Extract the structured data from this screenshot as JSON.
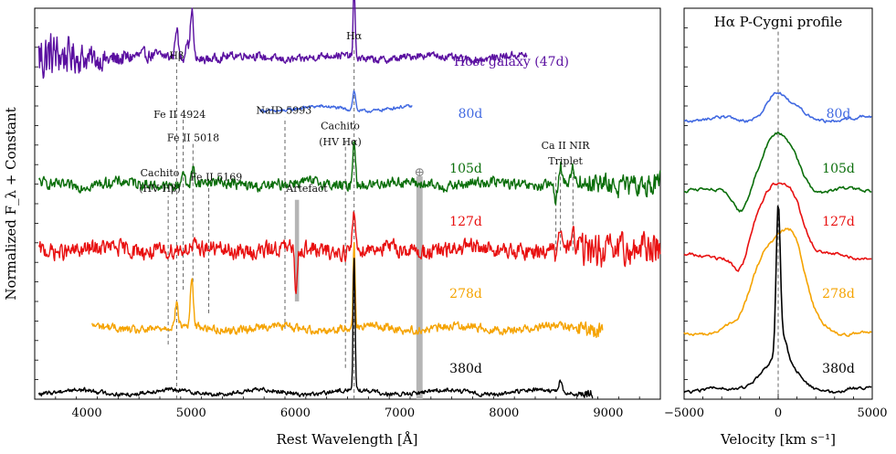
{
  "chart_data": [
    {
      "type": "line",
      "title": "",
      "xlabel": "Rest Wavelength [Å]",
      "ylabel": "Normalized F_λ + Constant",
      "xlim": [
        3500,
        9500
      ],
      "ylim": [
        0,
        100
      ],
      "xticks": [
        4000,
        5000,
        6000,
        7000,
        8000,
        9000
      ],
      "series": [
        {
          "name": "Host galaxy (47d)",
          "label": "Host galaxy (47d)",
          "color": "#5a0fa0",
          "x_range": [
            3540,
            8220
          ],
          "offset": 87.4,
          "amplitude": 1.4,
          "noise_decay": 7.0,
          "lines": [
            [
              4861,
              8.0
            ],
            [
              4959,
              5.0
            ],
            [
              5007,
              13.0
            ],
            [
              6563,
              18.0
            ]
          ]
        },
        {
          "name": "80d",
          "label": "80d",
          "color": "#4169e1",
          "x_range": [
            5660,
            7120
          ],
          "offset": 74.3,
          "amplitude": 0.6,
          "lines": [
            [
              6563,
              5.0
            ]
          ]
        },
        {
          "name": "105d",
          "label": "105d",
          "color": "#0a6e0a",
          "x_range": [
            3540,
            9500
          ],
          "offset": 55.0,
          "amplitude": 2.0,
          "lines": [
            [
              4920,
              4.0
            ],
            [
              5018,
              4.0
            ],
            [
              6563,
              12.0
            ],
            [
              8498,
              -4.0
            ],
            [
              8542,
              5.0
            ],
            [
              8662,
              4.0
            ]
          ]
        },
        {
          "name": "127d",
          "label": "127d",
          "color": "#e81010",
          "x_range": [
            3540,
            9500
          ],
          "offset": 38.2,
          "amplitude": 3.0,
          "lines": [
            [
              6563,
              10.0
            ],
            [
              6005,
              -10.0
            ],
            [
              8498,
              -3.0
            ],
            [
              8542,
              5.0
            ],
            [
              8662,
              4.0
            ]
          ]
        },
        {
          "name": "278d",
          "label": "278d",
          "color": "#f5a300",
          "x_range": [
            4050,
            8950
          ],
          "offset": 18.2,
          "amplitude": 1.5,
          "lines": [
            [
              4861,
              6.0
            ],
            [
              5007,
              12.0
            ],
            [
              6563,
              22.0
            ]
          ]
        },
        {
          "name": "380d",
          "label": "380d",
          "color": "#000000",
          "x_range": [
            3540,
            8850
          ],
          "offset": 1.8,
          "amplitude": 0.8,
          "lines": [
            [
              6563,
              34.0
            ],
            [
              8542,
              3.0
            ]
          ]
        }
      ],
      "vertical_markers": [
        {
          "x": 4780,
          "y_from": 14,
          "y_to": 52
        },
        {
          "x": 4861,
          "y_from": 0,
          "y_to": 86
        },
        {
          "x": 4924,
          "y_from": 28,
          "y_to": 72
        },
        {
          "x": 5018,
          "y_from": 30,
          "y_to": 66
        },
        {
          "x": 5169,
          "y_from": 22,
          "y_to": 55
        },
        {
          "x": 5900,
          "y_from": 18,
          "y_to": 72
        },
        {
          "x": 6480,
          "y_from": 8,
          "y_to": 66
        },
        {
          "x": 6563,
          "y_from": 0,
          "y_to": 90
        },
        {
          "x": 8498,
          "y_from": 38,
          "y_to": 58
        },
        {
          "x": 8542,
          "y_from": 38,
          "y_to": 58
        },
        {
          "x": 8662,
          "y_from": 38,
          "y_to": 58
        }
      ],
      "shaded_bands": [
        {
          "x_start": 5995,
          "x_end": 6035,
          "y_from": 25,
          "y_to": 51
        },
        {
          "x_start": 7160,
          "x_end": 7220,
          "y_from": 0,
          "y_to": 57
        }
      ],
      "annotations": [
        {
          "text": "Hβ",
          "x": 4861,
          "y": 87
        },
        {
          "text": "Hα",
          "x": 6563,
          "y": 92
        },
        {
          "text": "Fe II 4924",
          "x": 4890,
          "y": 72
        },
        {
          "text": "Fe II 5018",
          "x": 5020,
          "y": 66
        },
        {
          "text": "Fe II 5169",
          "x": 5240,
          "y": 56
        },
        {
          "text": "NaID 5993",
          "x": 5890,
          "y": 73
        },
        {
          "text": "Cachito",
          "x": 6430,
          "y": 69
        },
        {
          "text": "(HV Hα)",
          "x": 6430,
          "y": 65
        },
        {
          "text": "Cachito",
          "x": 4700,
          "y": 57
        },
        {
          "text": "(HV Hβ)",
          "x": 4700,
          "y": 53
        },
        {
          "text": "Artefact",
          "x": 6110,
          "y": 53
        },
        {
          "text": "⊕",
          "x": 7190,
          "y": 57
        },
        {
          "text": "Ca II NIR",
          "x": 8590,
          "y": 64
        },
        {
          "text": "Triplet",
          "x": 8590,
          "y": 60
        }
      ]
    },
    {
      "type": "line",
      "title": "Hα P-Cygni profile",
      "xlabel": "Velocity [km s⁻¹]",
      "ylabel": "",
      "xlim": [
        -5000,
        5000
      ],
      "ylim": [
        0,
        100
      ],
      "xticks": [
        -5000,
        0,
        5000
      ],
      "tick_labels": [
        "−5000",
        "0",
        "5000"
      ],
      "reference_line_x": 0,
      "series": [
        {
          "name": "80d",
          "label": "80d",
          "color": "#4169e1",
          "offset": 71.7,
          "peak": 6.5,
          "absorption": 0.5
        },
        {
          "name": "105d",
          "label": "105d",
          "color": "#0a6e0a",
          "offset": 53.3,
          "peak": 13.5,
          "absorption": 5.0
        },
        {
          "name": "127d",
          "label": "127d",
          "color": "#e81010",
          "offset": 36.5,
          "peak": 18.0,
          "absorption": 5.5
        },
        {
          "name": "278d",
          "label": "278d",
          "color": "#f5a300",
          "offset": 17.0,
          "peak": 24.0,
          "absorption": 2.5
        },
        {
          "name": "380d",
          "label": "380d",
          "color": "#000000",
          "offset": 2.3,
          "peak": 38.0,
          "absorption": 0.0
        }
      ]
    }
  ]
}
